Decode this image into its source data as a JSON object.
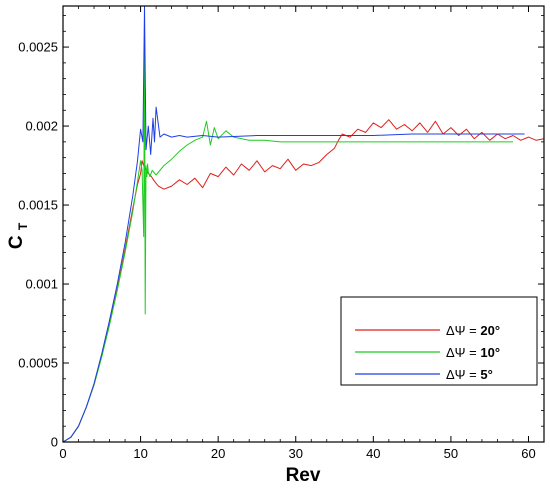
{
  "chart_data": {
    "type": "line",
    "xlabel": "Rev",
    "ylabel": "C",
    "ylabel_sub": "T",
    "xlim": [
      0,
      62
    ],
    "ylim": [
      0,
      0.00276
    ],
    "grid": false,
    "legend_position": "lower-right",
    "x_ticks": [
      0,
      10,
      20,
      30,
      40,
      50,
      60
    ],
    "x_tick_labels": [
      "0",
      "10",
      "20",
      "30",
      "40",
      "50",
      "60"
    ],
    "y_ticks": [
      0,
      0.0005,
      0.001,
      0.0015,
      0.002,
      0.0025
    ],
    "y_tick_labels": [
      "0",
      "0.0005",
      "0.001",
      "0.0015",
      "0.002",
      "0.0025"
    ],
    "series": [
      {
        "name": "ΔΨ = 20°",
        "color": "#e0201b",
        "x": [
          0,
          1,
          2,
          3,
          4,
          5,
          6,
          7,
          8,
          9,
          9.6,
          10,
          10.2,
          10.4,
          10.7,
          11,
          11.4,
          11.8,
          12.3,
          13,
          14,
          15,
          16,
          17,
          18,
          19,
          20,
          21,
          22,
          23,
          24,
          25,
          26,
          27,
          28,
          29,
          30,
          31,
          32,
          33,
          34,
          35,
          35.5,
          36,
          37,
          38,
          39,
          40,
          41,
          42,
          43,
          44,
          45,
          46,
          47,
          48,
          49,
          50,
          51,
          52,
          53,
          54,
          55,
          56,
          57,
          58,
          59,
          60,
          61,
          62
        ],
        "y": [
          0,
          3e-05,
          0.0001,
          0.00022,
          0.00036,
          0.00055,
          0.00075,
          0.00097,
          0.00122,
          0.00148,
          0.00163,
          0.0017,
          0.00178,
          0.00175,
          0.00172,
          0.0017,
          0.00168,
          0.00165,
          0.00162,
          0.0016,
          0.00162,
          0.00166,
          0.00163,
          0.00167,
          0.00161,
          0.0017,
          0.00168,
          0.00174,
          0.00169,
          0.00176,
          0.00172,
          0.00178,
          0.00171,
          0.00175,
          0.00173,
          0.00179,
          0.00172,
          0.00176,
          0.00175,
          0.00177,
          0.00182,
          0.00186,
          0.00191,
          0.00195,
          0.00193,
          0.00198,
          0.00196,
          0.00202,
          0.00199,
          0.00204,
          0.00198,
          0.00201,
          0.00197,
          0.00202,
          0.00196,
          0.00203,
          0.00195,
          0.00199,
          0.00194,
          0.00198,
          0.00192,
          0.00196,
          0.00191,
          0.00195,
          0.00192,
          0.00194,
          0.00191,
          0.00193,
          0.00191,
          0.00192
        ]
      },
      {
        "name": "ΔΨ = 10°",
        "color": "#1fcc1f",
        "x": [
          0,
          1,
          2,
          3,
          4,
          5,
          6,
          7,
          8,
          9,
          9.6,
          10,
          10.2,
          10.4,
          10.5,
          10.6,
          10.7,
          10.8,
          10.9,
          11,
          11.2,
          11.5,
          12,
          13,
          14,
          15,
          16,
          17,
          18,
          18.5,
          19,
          19.5,
          20,
          21,
          22,
          24,
          26,
          28,
          30,
          35,
          40,
          45,
          50,
          55,
          58
        ],
        "y": [
          0,
          3e-05,
          0.0001,
          0.00022,
          0.00036,
          0.00054,
          0.00074,
          0.00096,
          0.0012,
          0.00146,
          0.00165,
          0.00178,
          0.00172,
          0.0013,
          0.00258,
          0.00081,
          0.00175,
          0.00168,
          0.00176,
          0.00171,
          0.00168,
          0.00172,
          0.00169,
          0.00175,
          0.00179,
          0.00184,
          0.00188,
          0.00191,
          0.00193,
          0.00203,
          0.00188,
          0.00199,
          0.00192,
          0.00197,
          0.00193,
          0.00191,
          0.00191,
          0.0019,
          0.0019,
          0.0019,
          0.0019,
          0.0019,
          0.0019,
          0.0019,
          0.0019
        ]
      },
      {
        "name": "ΔΨ = 5°",
        "color": "#1f3fe6",
        "x": [
          0,
          1,
          2,
          3,
          4,
          5,
          6,
          7,
          8,
          9,
          9.6,
          10,
          10.3,
          10.5,
          10.7,
          11,
          11.3,
          11.6,
          11.8,
          12,
          12.5,
          13,
          14,
          15,
          16,
          18,
          20,
          25,
          30,
          35,
          40,
          45,
          50,
          55,
          59.5
        ],
        "y": [
          0,
          3e-05,
          0.0001,
          0.00022,
          0.00037,
          0.00056,
          0.00077,
          0.001,
          0.00126,
          0.00156,
          0.00178,
          0.00198,
          0.0019,
          0.00276,
          0.00185,
          0.002,
          0.00182,
          0.00205,
          0.0019,
          0.00212,
          0.00193,
          0.00195,
          0.00193,
          0.00194,
          0.00193,
          0.00194,
          0.00193,
          0.00194,
          0.00194,
          0.00194,
          0.00194,
          0.00195,
          0.00195,
          0.00195,
          0.00195
        ]
      }
    ]
  }
}
